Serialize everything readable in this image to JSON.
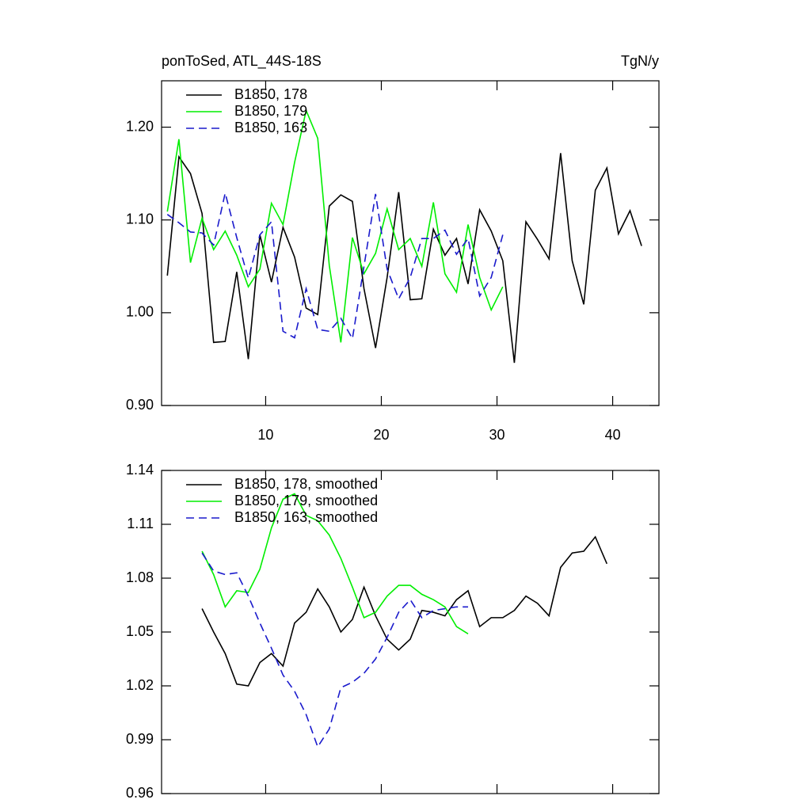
{
  "chart_data": [
    {
      "type": "line",
      "title": "ponToSed, ATL_44S-18S",
      "units": "TgN/y",
      "x": [
        1.5,
        2.5,
        3.5,
        4.5,
        5.5,
        6.5,
        7.5,
        8.5,
        9.5,
        10.5,
        11.5,
        12.5,
        13.5,
        14.5,
        15.5,
        16.5,
        17.5,
        18.5,
        19.5,
        20.5,
        21.5,
        22.5,
        23.5,
        24.5,
        25.5,
        26.5,
        27.5,
        28.5,
        29.5,
        30.5,
        31.5,
        32.5,
        33.5,
        34.5,
        35.5,
        36.5,
        37.5,
        38.5,
        39.5,
        40.5,
        41.5,
        42.5
      ],
      "series": [
        {
          "name": "B1850, 178",
          "color": "#000000",
          "dashed": false,
          "values": [
            1.04,
            1.168,
            1.15,
            1.107,
            0.968,
            0.969,
            1.044,
            0.95,
            1.084,
            1.033,
            1.092,
            1.06,
            1.005,
            0.998,
            1.115,
            1.127,
            1.12,
            1.026,
            0.962,
            1.038,
            1.13,
            1.014,
            1.015,
            1.09,
            1.062,
            1.08,
            1.031,
            1.111,
            1.088,
            1.056,
            0.946,
            1.098,
            1.079,
            1.058,
            1.172,
            1.056,
            1.009,
            1.132,
            1.156,
            1.085,
            1.11,
            1.072
          ]
        },
        {
          "name": "B1850, 179",
          "color": "#00ee00",
          "dashed": false,
          "values": [
            1.109,
            1.187,
            1.054,
            1.102,
            1.068,
            1.088,
            1.062,
            1.028,
            1.047,
            1.118,
            1.095,
            1.162,
            1.218,
            1.188,
            1.051,
            0.968,
            1.081,
            1.042,
            1.064,
            1.112,
            1.068,
            1.08,
            1.05,
            1.119,
            1.042,
            1.022,
            1.095,
            1.038,
            1.003,
            1.028,
            null,
            null,
            null,
            null,
            null,
            null,
            null,
            null,
            null,
            null,
            null,
            null
          ]
        },
        {
          "name": "B1850, 163",
          "color": "#1a1acc",
          "dashed": true,
          "values": [
            1.106,
            1.097,
            1.087,
            1.086,
            1.073,
            1.129,
            1.081,
            1.037,
            1.084,
            1.098,
            0.98,
            0.973,
            1.026,
            0.982,
            0.98,
            0.994,
            0.972,
            1.05,
            1.128,
            1.047,
            1.015,
            1.038,
            1.08,
            1.08,
            1.089,
            1.063,
            1.08,
            1.018,
            1.038,
            1.084,
            null,
            null,
            null,
            null,
            null,
            null,
            null,
            null,
            null,
            null,
            null,
            null
          ]
        }
      ],
      "xlim": [
        1,
        44
      ],
      "xticks": [
        10,
        20,
        30,
        40
      ],
      "ylim": [
        0.9,
        1.25
      ],
      "yticks": [
        {
          "value": 0.9,
          "label": "0.90"
        },
        {
          "value": 1.0,
          "label": "1.00"
        },
        {
          "value": 1.1,
          "label": "1.10"
        },
        {
          "value": 1.2,
          "label": "1.20"
        }
      ]
    },
    {
      "type": "line",
      "x": [
        4.5,
        5.5,
        6.5,
        7.5,
        8.5,
        9.5,
        10.5,
        11.5,
        12.5,
        13.5,
        14.5,
        15.5,
        16.5,
        17.5,
        18.5,
        19.5,
        20.5,
        21.5,
        22.5,
        23.5,
        24.5,
        25.5,
        26.5,
        27.5,
        28.5,
        29.5,
        30.5,
        31.5,
        32.5,
        33.5,
        34.5,
        35.5,
        36.5,
        37.5,
        38.5,
        39.5
      ],
      "series": [
        {
          "name": "B1850, 178, smoothed",
          "color": "#000000",
          "dashed": false,
          "values": [
            1.063,
            1.05,
            1.038,
            1.021,
            1.02,
            1.033,
            1.038,
            1.031,
            1.055,
            1.061,
            1.074,
            1.064,
            1.05,
            1.057,
            1.075,
            1.059,
            1.046,
            1.04,
            1.046,
            1.062,
            1.061,
            1.059,
            1.068,
            1.073,
            1.053,
            1.058,
            1.058,
            1.062,
            1.07,
            1.066,
            1.059,
            1.086,
            1.094,
            1.095,
            1.103,
            1.088
          ]
        },
        {
          "name": "B1850, 179, smoothed",
          "color": "#00ee00",
          "dashed": false,
          "values": [
            1.095,
            1.082,
            1.064,
            1.073,
            1.072,
            1.085,
            1.108,
            1.124,
            1.127,
            1.115,
            1.112,
            1.104,
            1.091,
            1.075,
            1.058,
            1.061,
            1.07,
            1.076,
            1.076,
            1.071,
            1.068,
            1.064,
            1.053,
            1.049,
            null,
            null,
            null,
            null,
            null,
            null,
            null,
            null,
            null,
            null,
            null,
            null
          ]
        },
        {
          "name": "B1850, 163, smoothed",
          "color": "#1a1acc",
          "dashed": true,
          "values": [
            1.094,
            1.084,
            1.082,
            1.083,
            1.07,
            1.055,
            1.041,
            1.026,
            1.017,
            1.004,
            0.986,
            0.996,
            1.019,
            1.022,
            1.027,
            1.035,
            1.047,
            1.061,
            1.068,
            1.058,
            1.062,
            1.063,
            1.064,
            1.064,
            null,
            null,
            null,
            null,
            null,
            null,
            null,
            null,
            null,
            null,
            null,
            null
          ]
        }
      ],
      "xlim": [
        1,
        44
      ],
      "xticks": [
        10,
        20,
        30,
        40
      ],
      "ylim": [
        0.96,
        1.14
      ],
      "yticks": [
        0.96,
        0.99,
        1.02,
        1.05,
        1.08,
        1.11,
        1.14
      ]
    }
  ]
}
